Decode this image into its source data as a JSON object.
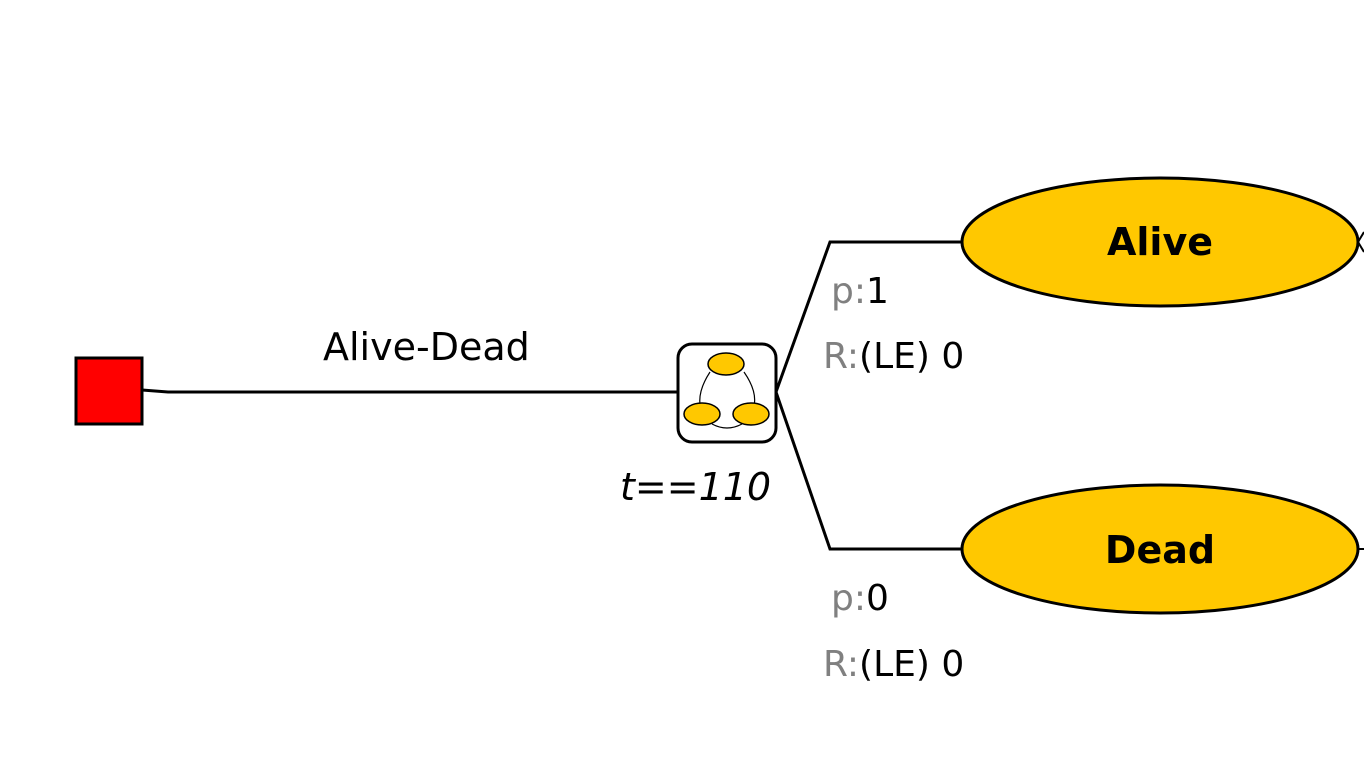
{
  "colors": {
    "decision_node": "#ff0000",
    "state_fill": "#ffc800",
    "prefix_gray": "#808080",
    "line": "#000000"
  },
  "decision": {
    "icon": "decision-square-icon"
  },
  "branch": {
    "label": "Alive-Dead"
  },
  "markov_node": {
    "icon": "markov-node-icon",
    "condition": "t==110"
  },
  "states": [
    {
      "name": "Alive",
      "prob_prefix": "p:",
      "prob_value": "1",
      "reward_prefix": "R:",
      "reward_value": "(LE) 0"
    },
    {
      "name": "Dead",
      "prob_prefix": "p:",
      "prob_value": "0",
      "reward_prefix": "R:",
      "reward_value": "(LE) 0"
    }
  ]
}
